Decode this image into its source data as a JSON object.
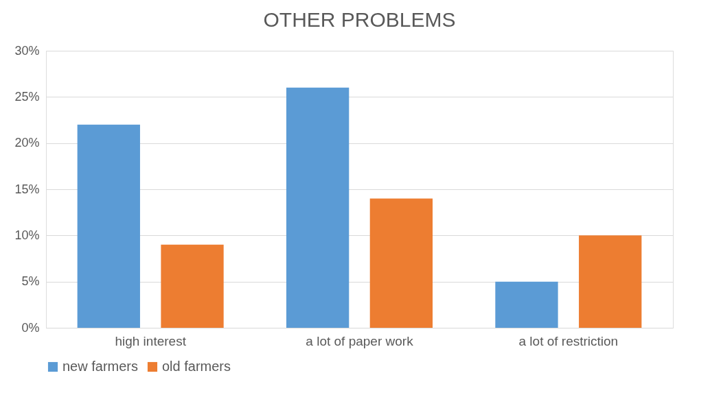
{
  "chart_data": {
    "type": "bar",
    "title": "OTHER PROBLEMS",
    "categories": [
      "high interest",
      "a lot of paper work",
      "a lot of restriction"
    ],
    "series": [
      {
        "name": "new farmers",
        "color": "#5b9bd5",
        "values": [
          22,
          26,
          5
        ]
      },
      {
        "name": "old farmers",
        "color": "#ed7d31",
        "values": [
          9,
          14,
          10
        ]
      }
    ],
    "ylim": [
      0,
      30
    ],
    "yticks": [
      {
        "value": 0,
        "label": "0%"
      },
      {
        "value": 5,
        "label": "5%"
      },
      {
        "value": 10,
        "label": "10%"
      },
      {
        "value": 15,
        "label": "15%"
      },
      {
        "value": 20,
        "label": "20%"
      },
      {
        "value": 25,
        "label": "25%"
      },
      {
        "value": 30,
        "label": "30%"
      }
    ],
    "grid": "y",
    "legend": "bottom"
  }
}
